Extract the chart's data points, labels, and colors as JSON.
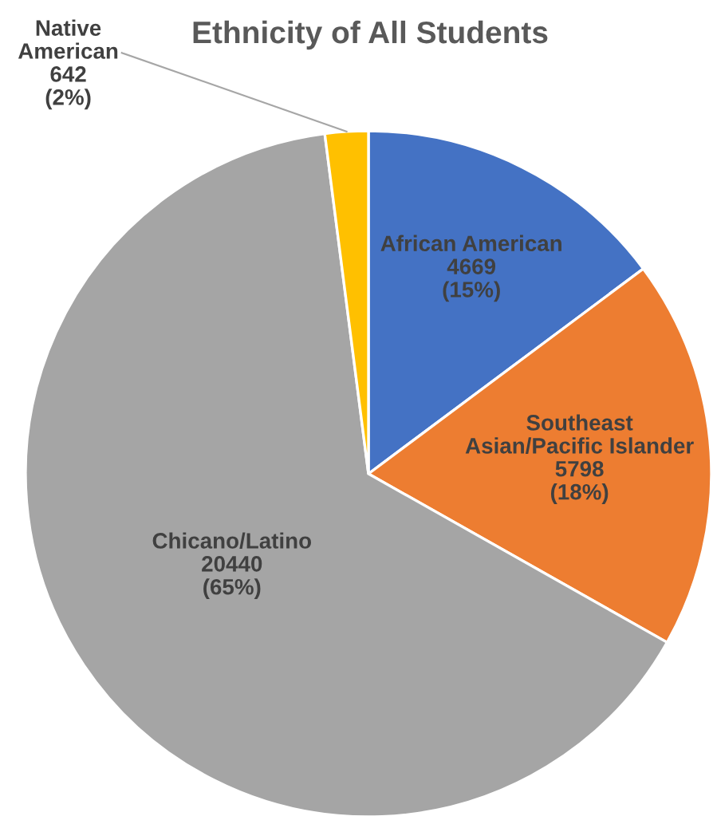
{
  "chart_data": {
    "type": "pie",
    "title": "Ethnicity of All Students",
    "categories": [
      "African American",
      "Southeast\nAsian/Pacific Islander",
      "Chicano/Latino",
      "Native\nAmerican"
    ],
    "values": [
      4669,
      5798,
      20440,
      642
    ],
    "colors": [
      "#4472c4",
      "#ed7d31",
      "#a5a5a5",
      "#ffc000"
    ],
    "value_labels": [
      "4669\n(15%)",
      "5798\n(18%)",
      "20440\n(65%)",
      "642\n(2%)"
    ]
  }
}
